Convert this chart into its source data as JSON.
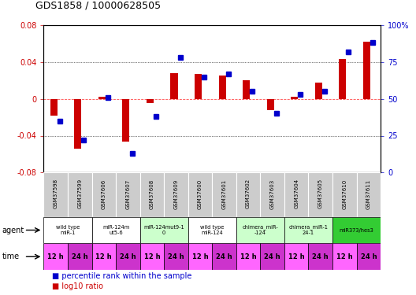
{
  "title": "GDS1858 / 10000628505",
  "samples": [
    "GSM37598",
    "GSM37599",
    "GSM37606",
    "GSM37607",
    "GSM37608",
    "GSM37609",
    "GSM37600",
    "GSM37601",
    "GSM37602",
    "GSM37603",
    "GSM37604",
    "GSM37605",
    "GSM37610",
    "GSM37611"
  ],
  "log10_ratio": [
    -0.018,
    -0.054,
    0.002,
    -0.046,
    -0.005,
    0.028,
    0.027,
    0.025,
    0.02,
    -0.012,
    0.002,
    0.018,
    0.043,
    0.062
  ],
  "percentile_rank": [
    35,
    22,
    51,
    13,
    38,
    78,
    65,
    67,
    55,
    40,
    53,
    55,
    82,
    88
  ],
  "ylim": [
    -0.08,
    0.08
  ],
  "yticks_left": [
    -0.08,
    -0.04,
    0.0,
    0.04,
    0.08
  ],
  "yticks_right": [
    0,
    25,
    50,
    75,
    100
  ],
  "bar_color": "#cc0000",
  "dot_color": "#0000cc",
  "agent_groups": [
    {
      "label": "wild type\nmiR-1",
      "cols": [
        0,
        1
      ],
      "color": "#ffffff"
    },
    {
      "label": "miR-124m\nut5-6",
      "cols": [
        2,
        3
      ],
      "color": "#ffffff"
    },
    {
      "label": "miR-124mut9-1\n0",
      "cols": [
        4,
        5
      ],
      "color": "#ccffcc"
    },
    {
      "label": "wild type\nmiR-124",
      "cols": [
        6,
        7
      ],
      "color": "#ffffff"
    },
    {
      "label": "chimera_miR-\n-124",
      "cols": [
        8,
        9
      ],
      "color": "#ccffcc"
    },
    {
      "label": "chimera_miR-1\n24-1",
      "cols": [
        10,
        11
      ],
      "color": "#ccffcc"
    },
    {
      "label": "miR373/hes3",
      "cols": [
        12,
        13
      ],
      "color": "#33cc33"
    }
  ],
  "time_labels": [
    "12 h",
    "24 h",
    "12 h",
    "24 h",
    "12 h",
    "24 h",
    "12 h",
    "24 h",
    "12 h",
    "24 h",
    "12 h",
    "24 h",
    "12 h",
    "24 h"
  ],
  "time_color_12": "#ff66ff",
  "time_color_24": "#cc33cc",
  "axis_label_color_left": "#cc0000",
  "axis_label_color_right": "#0000cc",
  "bg_color": "#ffffff",
  "sample_bg_color": "#cccccc"
}
